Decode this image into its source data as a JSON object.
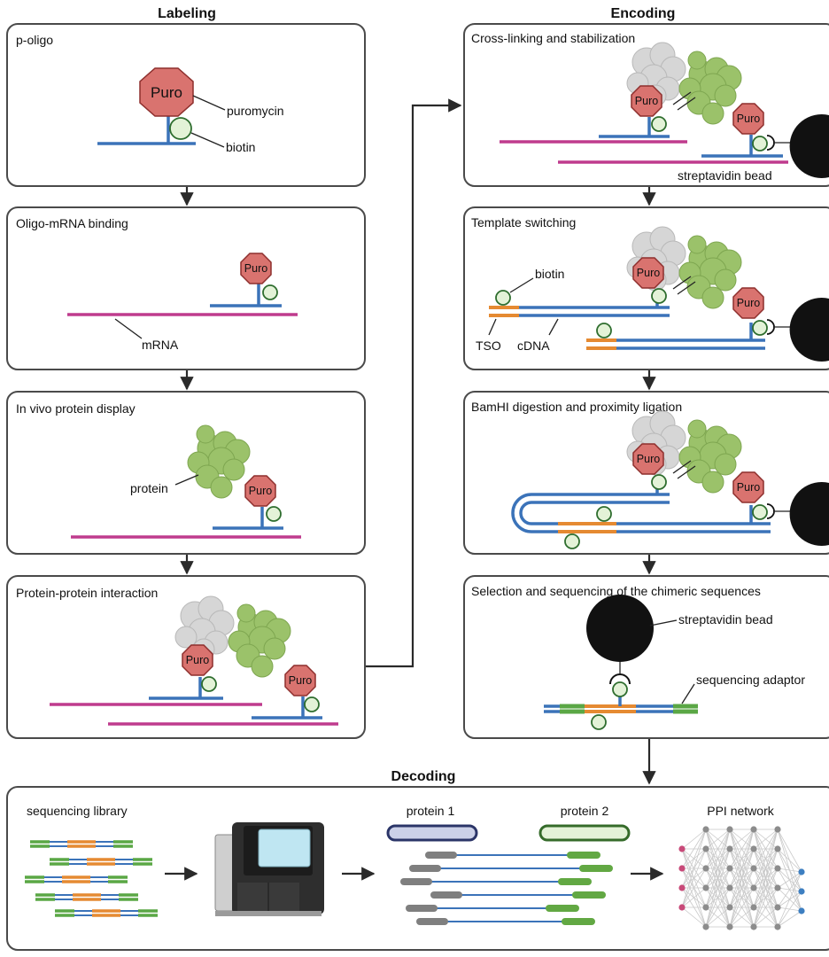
{
  "sections": {
    "labeling": "Labeling",
    "encoding": "Encoding",
    "decoding": "Decoding"
  },
  "panels": {
    "p_oligo": "p-oligo",
    "oligo_mrna_binding": "Oligo-mRNA binding",
    "in_vivo_display": "In vivo protein display",
    "ppi": "Protein-protein interaction",
    "crosslinking": "Cross-linking and stabilization",
    "template_switching": "Template switching",
    "bamhi": "BamHI digestion and proximity ligation",
    "selection": "Selection and sequencing of the chimeric sequences"
  },
  "labels": {
    "puro": "Puro",
    "puromycin": "puromycin",
    "biotin": "biotin",
    "mrna": "mRNA",
    "protein": "protein",
    "streptavidin_bead": "streptavidin bead",
    "tso": "TSO",
    "cdna": "cDNA",
    "sequencing_adaptor": "sequencing adaptor",
    "sequencing_library": "sequencing library",
    "protein_1": "protein 1",
    "protein_2": "protein 2",
    "ppi_network": "PPI network"
  },
  "colors": {
    "oligo_blue": "#3b73b9",
    "mrna_magenta": "#bf3b8d",
    "puro_red": "#d9736f",
    "biotin_green": "#e3f2d7",
    "protein_green": "#9bc26a",
    "partner_gray": "#d6d6d6",
    "tso_orange": "#e58a32",
    "adaptor_green": "#5aa745",
    "bead_black": "#111111",
    "network_pink": "#c84a79",
    "network_blue": "#3d7fc1"
  },
  "icons": [
    "puromycin-octagon-icon",
    "biotin-circle-icon",
    "protein-cloud-icon",
    "streptavidin-bead-icon",
    "sequencer-icon",
    "network-icon"
  ]
}
